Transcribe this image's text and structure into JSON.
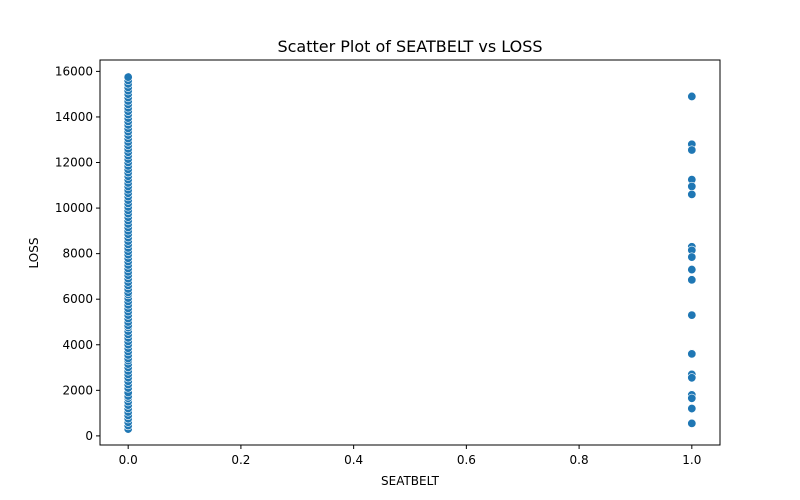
{
  "chart_data": {
    "type": "scatter",
    "title": "Scatter Plot of SEATBELT vs LOSS",
    "xlabel": "SEATBELT",
    "ylabel": "LOSS",
    "xlim": [
      -0.05,
      1.05
    ],
    "ylim": [
      -400,
      16500
    ],
    "xticks": [
      0.0,
      0.2,
      0.4,
      0.6,
      0.8,
      1.0
    ],
    "xtick_labels": [
      "0.0",
      "0.2",
      "0.4",
      "0.6",
      "0.8",
      "1.0"
    ],
    "yticks": [
      0,
      2000,
      4000,
      6000,
      8000,
      10000,
      12000,
      14000,
      16000
    ],
    "ytick_labels": [
      "0",
      "2000",
      "4000",
      "6000",
      "8000",
      "10000",
      "12000",
      "14000",
      "16000"
    ],
    "grid": false,
    "color": "#1f77b4",
    "series": [
      {
        "x_value": 0,
        "y": [
          300,
          450,
          600,
          750,
          900,
          1050,
          1200,
          1350,
          1500,
          1650,
          1750,
          1900,
          2100,
          2250,
          2400,
          2550,
          2700,
          2850,
          3000,
          3150,
          3300,
          3400,
          3550,
          3700,
          3850,
          4000,
          4150,
          4300,
          4450,
          4600,
          4750,
          4850,
          5000,
          5150,
          5300,
          5450,
          5600,
          5750,
          5900,
          6050,
          6200,
          6300,
          6450,
          6600,
          6750,
          6900,
          7050,
          7200,
          7350,
          7500,
          7650,
          7800,
          7950,
          8100,
          8250,
          8400,
          8550,
          8700,
          8850,
          9000,
          9150,
          9300,
          9450,
          9600,
          9750,
          9900,
          10050,
          10200,
          10350,
          10500,
          10650,
          10800,
          10950,
          11100,
          11250,
          11400,
          11550,
          11700,
          11850,
          12000,
          12150,
          12300,
          12450,
          12600,
          12750,
          12900,
          13050,
          13200,
          13350,
          13500,
          13650,
          13800,
          13950,
          14100,
          14250,
          14400,
          14550,
          14700,
          14850,
          15000,
          15150,
          15300,
          15450,
          15600,
          15750
        ]
      },
      {
        "x_value": 1,
        "y": [
          14900,
          12800,
          12550,
          11250,
          10950,
          10600,
          8300,
          8150,
          7850,
          7300,
          6850,
          5300,
          3600,
          2700,
          2550,
          1800,
          1650,
          1200,
          550
        ]
      }
    ]
  }
}
